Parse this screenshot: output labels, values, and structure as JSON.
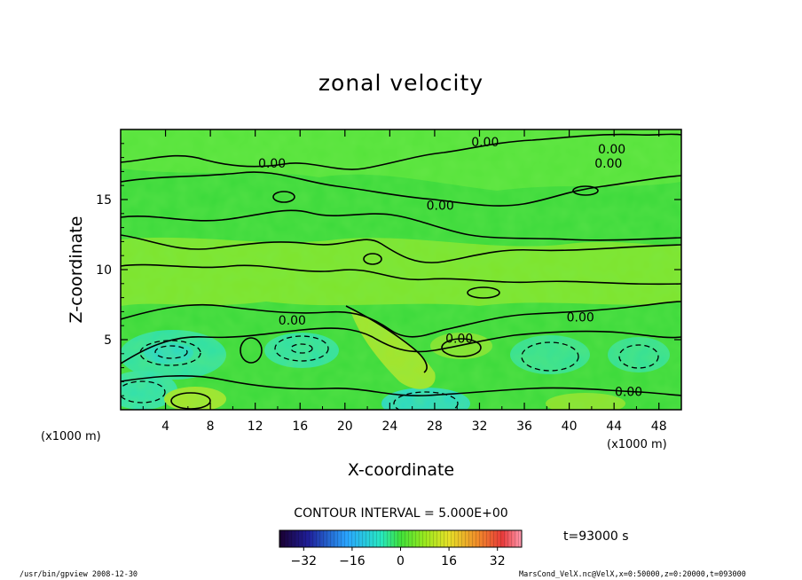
{
  "chart_data": {
    "type": "heatmap",
    "title": "zonal velocity",
    "xlabel": "X-coordinate",
    "ylabel": "Z-coordinate",
    "x_unit": "(x1000 m)",
    "y_unit": "(x1000 m)",
    "xlim": [
      0,
      50
    ],
    "ylim": [
      0,
      20
    ],
    "x_ticks": [
      4,
      8,
      12,
      16,
      20,
      24,
      28,
      32,
      36,
      40,
      44,
      48
    ],
    "y_ticks": [
      5,
      10,
      15
    ],
    "contour_interval_label": "CONTOUR INTERVAL = 5.000E+00",
    "contour_labels": [
      {
        "text": "0.00",
        "x": 32.5,
        "z": 19.1
      },
      {
        "text": "0.00",
        "x": 43.8,
        "z": 18.6
      },
      {
        "text": "0.00",
        "x": 43.5,
        "z": 17.6
      },
      {
        "text": "0.00",
        "x": 13.5,
        "z": 17.6
      },
      {
        "text": "0.00",
        "x": 28.5,
        "z": 14.6
      },
      {
        "text": "0.00",
        "x": 15.3,
        "z": 6.4
      },
      {
        "text": "0.00",
        "x": 41.0,
        "z": 6.6
      },
      {
        "text": "0.00",
        "x": 30.2,
        "z": 5.1
      },
      {
        "text": "0.00",
        "x": 45.3,
        "z": 1.3
      }
    ],
    "colorbar": {
      "min": -40,
      "max": 40,
      "ticks": [
        -32,
        -16,
        0,
        16,
        32
      ],
      "time_label": "t=93000 s"
    }
  },
  "footer": {
    "left": "/usr/bin/gpview  2008-12-30",
    "right": "MarsCond_VelX.nc@VelX,x=0:50000,z=0:20000,t=093000"
  }
}
